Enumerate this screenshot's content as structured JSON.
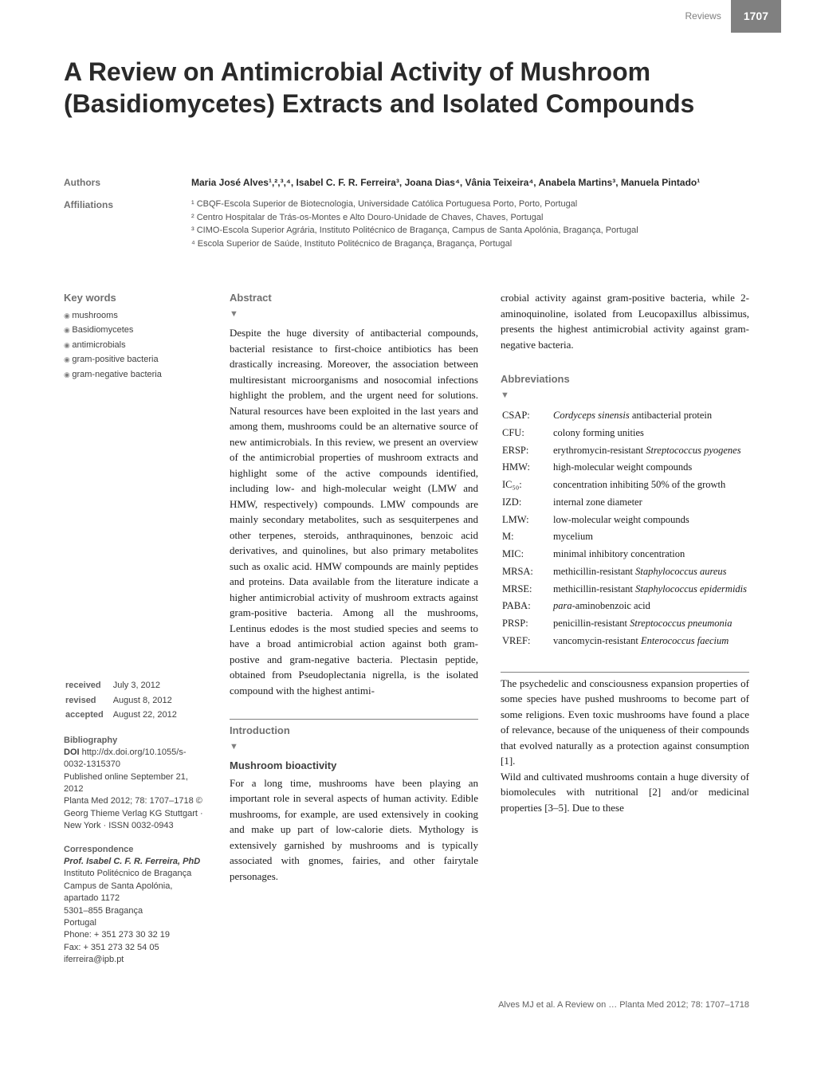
{
  "header": {
    "section_label": "Reviews",
    "page_number": "1707"
  },
  "title": "A Review on Antimicrobial Activity of Mushroom (Basidiomycetes) Extracts and Isolated Compounds",
  "authors_label": "Authors",
  "authors_line": "Maria José Alves¹,²,³,⁴, Isabel C. F. R. Ferreira³, Joana Dias⁴, Vânia Teixeira⁴, Anabela Martins³, Manuela Pintado¹",
  "affiliations_label": "Affiliations",
  "affiliations": [
    "¹ CBQF-Escola Superior de Biotecnologia, Universidade Católica Portuguesa Porto, Porto, Portugal",
    "² Centro Hospitalar de Trás-os-Montes e Alto Douro-Unidade de Chaves, Chaves, Portugal",
    "³ CIMO-Escola Superior Agrária, Instituto Politécnico de Bragança, Campus de Santa Apolónia, Bragança, Portugal",
    "⁴ Escola Superior de Saúde, Instituto Politécnico de Bragança, Bragança, Portugal"
  ],
  "keywords_label": "Key words",
  "keywords": [
    "mushrooms",
    "Basidiomycetes",
    "antimicrobials",
    "gram-positive bacteria",
    "gram-negative bacteria"
  ],
  "dates": {
    "received_label": "received",
    "received": "July 3, 2012",
    "revised_label": "revised",
    "revised": "August 8, 2012",
    "accepted_label": "accepted",
    "accepted": "August 22, 2012"
  },
  "bibliography": {
    "heading": "Bibliography",
    "doi_label": "DOI",
    "doi": "http://dx.doi.org/10.1055/s-0032-1315370",
    "published": "Published online September 21, 2012",
    "citation": "Planta Med 2012; 78: 1707–1718 © Georg Thieme Verlag KG Stuttgart · New York · ISSN 0032-0943"
  },
  "correspondence": {
    "heading": "Correspondence",
    "name": "Prof. Isabel C. F. R. Ferreira, PhD",
    "lines": [
      "Instituto Politécnico de Bragança",
      "Campus de Santa Apolónia,",
      "apartado 1172",
      "5301–855 Bragança",
      "Portugal",
      "Phone: + 351 273 30 32 19",
      "Fax: + 351 273 32 54 05",
      "iferreira@ipb.pt"
    ]
  },
  "abstract": {
    "heading": "Abstract",
    "text_mid": "Despite the huge diversity of antibacterial compounds, bacterial resistance to first-choice antibiotics has been drastically increasing. Moreover, the association between multiresistant microorganisms and nosocomial infections highlight the problem, and the urgent need for solutions. Natural resources have been exploited in the last years and among them, mushrooms could be an alternative source of new antimicrobials. In this review, we present an overview of the antimicrobial properties of mushroom extracts and highlight some of the active compounds identified, including low- and high-molecular weight (LMW and HMW, respectively) compounds. LMW compounds are mainly secondary metabolites, such as sesquiterpenes and other terpenes, steroids, anthraquinones, benzoic acid derivatives, and quinolines, but also primary metabolites such as oxalic acid. HMW compounds are mainly peptides and proteins. Data available from the literature indicate a higher antimicrobial activity of mushroom extracts against gram-positive bacteria. Among all the mushrooms, Lentinus edodes is the most studied species and seems to have a broad antimicrobial action against both gram-postive and gram-negative bacteria. Plectasin peptide, obtained from Pseudoplectania nigrella, is the isolated compound with the highest antimi-",
    "text_right": "crobial activity against gram-positive bacteria, while 2-aminoquinoline, isolated from Leucopaxillus albissimus, presents the highest antimicrobial activity against gram-negative bacteria."
  },
  "abbreviations": {
    "heading": "Abbreviations",
    "items": [
      {
        "k": "CSAP:",
        "v": "Cordyceps sinensis antibacterial protein",
        "italic_start": 0,
        "italic_end": 18
      },
      {
        "k": "CFU:",
        "v": "colony forming unities"
      },
      {
        "k": "ERSP:",
        "v": "erythromycin-resistant Streptococcus pyogenes",
        "italic_start": 23
      },
      {
        "k": "HMW:",
        "v": "high-molecular weight compounds"
      },
      {
        "k": "IC₅₀:",
        "v": "concentration inhibiting 50% of the growth"
      },
      {
        "k": "IZD:",
        "v": "internal zone diameter"
      },
      {
        "k": "LMW:",
        "v": "low-molecular weight compounds"
      },
      {
        "k": "M:",
        "v": "mycelium"
      },
      {
        "k": "MIC:",
        "v": "minimal inhibitory concentration"
      },
      {
        "k": "MRSA:",
        "v": "methicillin-resistant Staphylococcus aureus",
        "italic_start": 22
      },
      {
        "k": "MRSE:",
        "v": "methicillin-resistant Staphylococcus epidermidis",
        "italic_start": 22
      },
      {
        "k": "PABA:",
        "v": "para-aminobenzoic acid",
        "italic_start": 0,
        "italic_end": 4
      },
      {
        "k": "PRSP:",
        "v": "penicillin-resistant Streptococcus pneumonia",
        "italic_start": 21
      },
      {
        "k": "VREF:",
        "v": "vancomycin-resistant Enterococcus faecium",
        "italic_start": 21
      }
    ]
  },
  "intro": {
    "heading": "Introduction",
    "subheading": "Mushroom bioactivity",
    "text_mid": "For a long time, mushrooms have been playing an important role in several aspects of human activity. Edible mushrooms, for example, are used extensively in cooking and make up part of low-calorie diets. Mythology is extensively garnished by mushrooms and is typically associated with gnomes, fairies, and other fairytale personages.",
    "text_right": "The psychedelic and consciousness expansion properties of some species have pushed mushrooms to become part of some religions. Even toxic mushrooms have found a place of relevance, because of the uniqueness of their compounds that evolved naturally as a protection against consumption [1].\nWild and cultivated mushrooms contain a huge diversity of biomolecules with nutritional [2] and/or medicinal properties [3–5]. Due to these"
  },
  "footer": "Alves MJ et al. A Review on … Planta Med 2012; 78: 1707–1718"
}
